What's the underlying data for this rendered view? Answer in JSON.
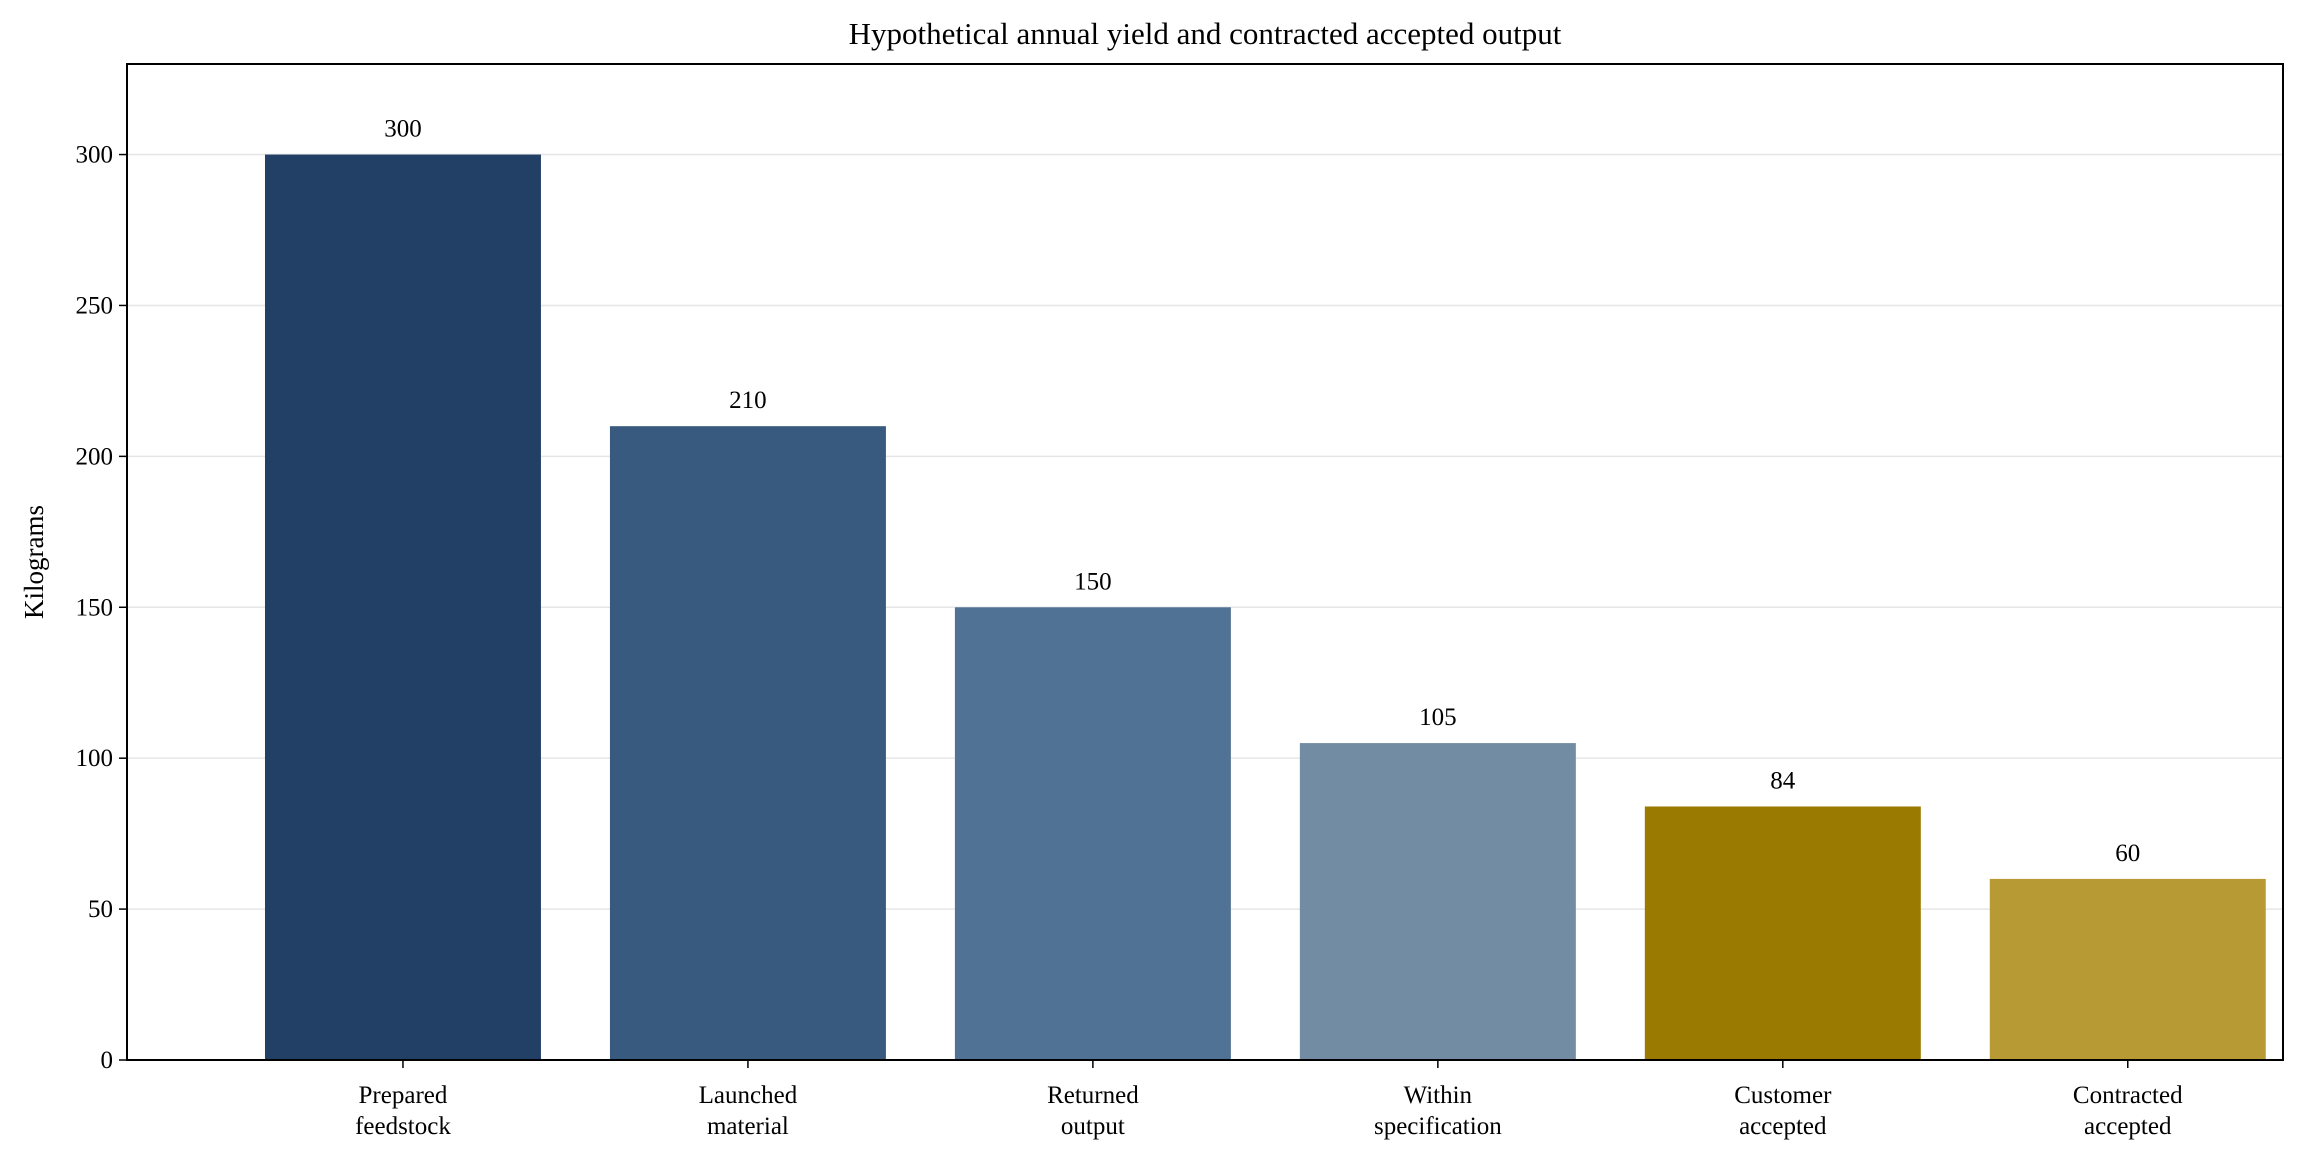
{
  "chart_data": {
    "type": "bar",
    "title": "Hypothetical annual yield and contracted accepted output",
    "xlabel": "",
    "ylabel": "Kilograms",
    "categories": [
      [
        "Prepared",
        "feedstock"
      ],
      [
        "Launched",
        "material"
      ],
      [
        "Returned",
        "output"
      ],
      [
        "Within",
        "specification"
      ],
      [
        "Customer",
        "accepted"
      ],
      [
        "Contracted",
        "accepted"
      ]
    ],
    "values": [
      300,
      210,
      150,
      105,
      84,
      60
    ],
    "data_labels": [
      "300",
      "210",
      "150",
      "105",
      "84",
      "60"
    ],
    "bar_colors": [
      "#223f66",
      "#375a7e",
      "#507395",
      "#718ca3",
      "#9a7a00",
      "#b89a35"
    ],
    "ylim": [
      0,
      330
    ],
    "yticks": [
      0,
      50,
      100,
      150,
      200,
      250,
      300
    ],
    "grid": true,
    "legend": "none"
  }
}
